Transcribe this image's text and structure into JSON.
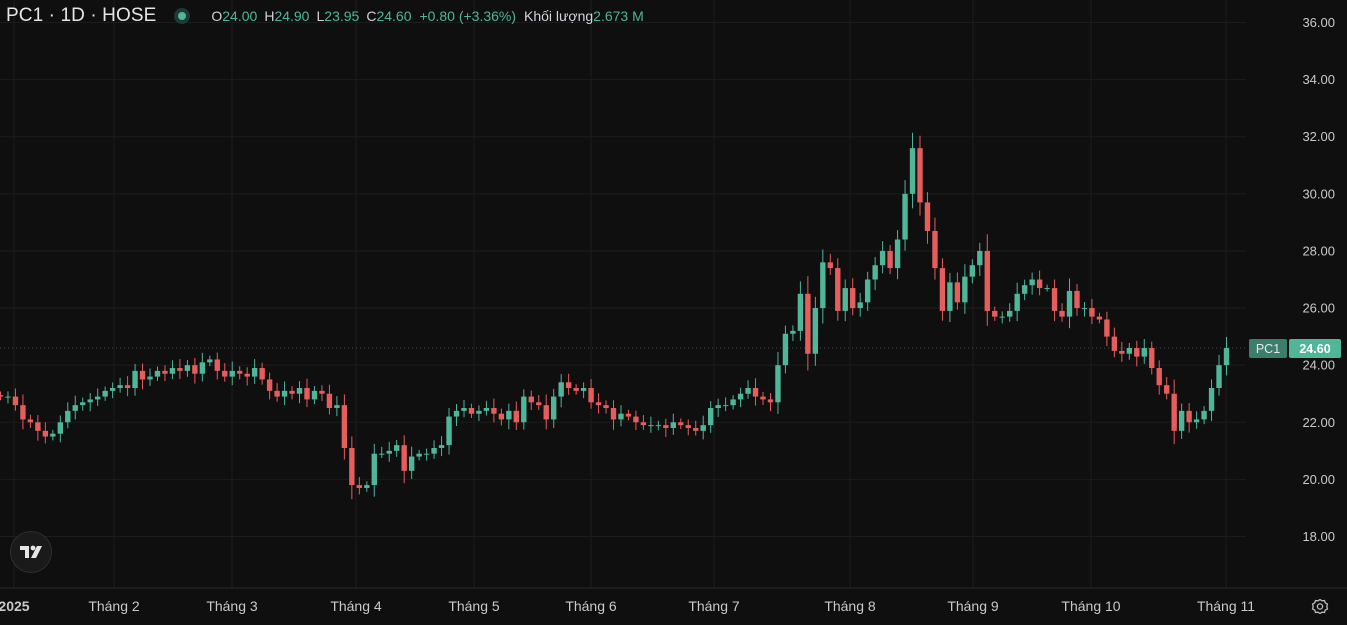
{
  "header": {
    "symbol": "PC1 · 1D · HOSE",
    "o_key": "O",
    "o_val": "24.00",
    "h_key": "H",
    "h_val": "24.90",
    "l_key": "L",
    "l_val": "23.95",
    "c_key": "C",
    "c_val": "24.60",
    "change": "+0.80 (+3.36%)",
    "volume_key": "Khối lượng",
    "volume_val": "2.673 M"
  },
  "colors": {
    "up": "#4fb69a",
    "down": "#e55d5d",
    "background": "#0f0f0f",
    "grid": "#1c1c1c",
    "axis_text": "#c9c9c9"
  },
  "icons": {
    "logo": "tradingview-logo-icon",
    "settings": "gear-icon"
  },
  "chart_data": {
    "type": "candlestick",
    "title": "PC1 · 1D · HOSE",
    "ylim": [
      16.5,
      36.5
    ],
    "y_ticks": [
      "18.00",
      "20.00",
      "22.00",
      "24.00",
      "26.00",
      "28.00",
      "30.00",
      "32.00",
      "34.00",
      "36.00"
    ],
    "x_ticks": [
      "2025",
      "Tháng 2",
      "Tháng 3",
      "Tháng 4",
      "Tháng 5",
      "Tháng 6",
      "Tháng 7",
      "Tháng 8",
      "Tháng 9",
      "Tháng 10",
      "Tháng 11"
    ],
    "last_price": {
      "label": "PC1",
      "value": "24.60"
    },
    "grid": true,
    "series_close": [
      22.9,
      22.9,
      22.6,
      22.1,
      22.0,
      21.7,
      21.5,
      21.6,
      22.0,
      22.4,
      22.6,
      22.7,
      22.8,
      22.9,
      23.1,
      23.2,
      23.3,
      23.2,
      23.8,
      23.5,
      23.6,
      23.8,
      23.7,
      23.9,
      23.8,
      24.0,
      23.7,
      24.1,
      24.2,
      23.8,
      23.6,
      23.8,
      23.7,
      23.6,
      23.9,
      23.5,
      23.1,
      22.9,
      23.1,
      23.0,
      23.2,
      22.8,
      23.1,
      23.0,
      22.5,
      22.6,
      21.1,
      19.8,
      19.7,
      19.8,
      20.9,
      20.9,
      21.0,
      21.2,
      20.3,
      20.8,
      20.9,
      20.9,
      21.1,
      21.2,
      22.2,
      22.4,
      22.5,
      22.3,
      22.4,
      22.5,
      22.3,
      22.1,
      22.4,
      22.0,
      22.9,
      22.7,
      22.6,
      22.1,
      22.9,
      23.4,
      23.2,
      23.1,
      23.2,
      22.7,
      22.6,
      22.5,
      22.1,
      22.3,
      22.2,
      22.0,
      21.9,
      21.9,
      21.9,
      21.8,
      22.0,
      21.9,
      21.8,
      21.7,
      21.9,
      22.5,
      22.6,
      22.6,
      22.8,
      23.0,
      23.2,
      22.9,
      22.8,
      22.7,
      24.0,
      25.1,
      25.2,
      26.5,
      24.4,
      26.0,
      27.6,
      27.4,
      25.9,
      26.7,
      26.0,
      26.2,
      27.0,
      27.5,
      28.0,
      27.4,
      28.4,
      30.0,
      31.6,
      29.7,
      28.7,
      27.4,
      25.9,
      26.9,
      26.2,
      27.1,
      27.5,
      28.0,
      25.9,
      25.7,
      25.7,
      25.9,
      26.5,
      26.8,
      27.0,
      26.7,
      26.7,
      25.9,
      25.7,
      26.6,
      26.0,
      26.0,
      25.7,
      25.6,
      25.0,
      24.5,
      24.4,
      24.6,
      24.3,
      24.6,
      23.9,
      23.3,
      23.0,
      21.7,
      22.4,
      22.0,
      22.1,
      22.4,
      23.2,
      24.0,
      24.6
    ]
  }
}
